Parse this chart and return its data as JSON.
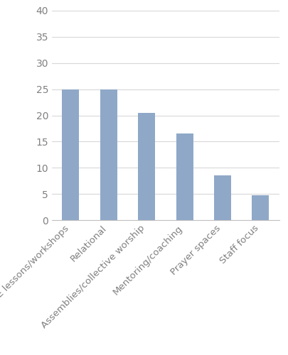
{
  "categories": [
    "RE lessons/workshops",
    "Relational",
    "Assemblies/collective worship",
    "Mentoring/coaching",
    "Prayer spaces",
    "Staff focus"
  ],
  "values": [
    25,
    25,
    20.5,
    16.5,
    8.5,
    4.8
  ],
  "bar_color": "#8fa8c8",
  "ylim": [
    0,
    40
  ],
  "yticks": [
    0,
    5,
    10,
    15,
    20,
    25,
    30,
    35,
    40
  ],
  "background_color": "#ffffff",
  "grid_color": "#d8d8d8",
  "ytick_label_fontsize": 10,
  "xtick_label_fontsize": 9.5,
  "tick_label_color": "#808080",
  "bar_width": 0.45
}
